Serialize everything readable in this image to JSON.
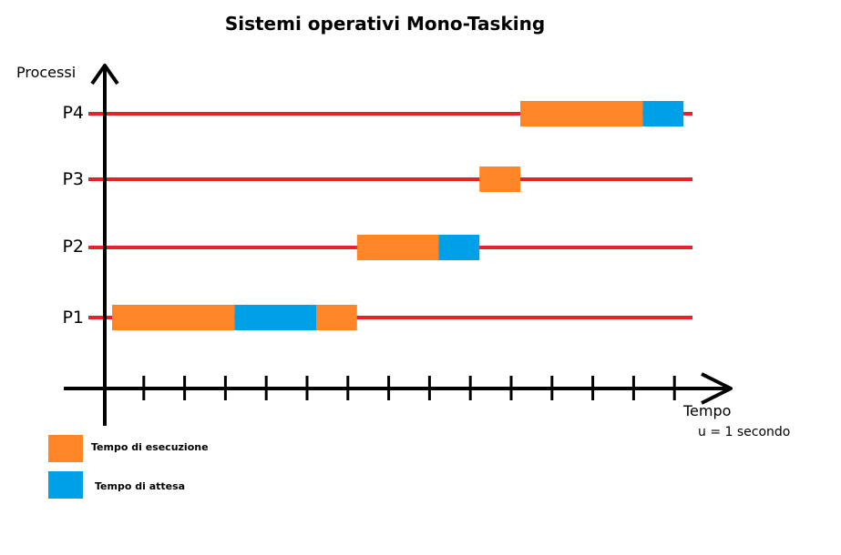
{
  "title": "Sistemi operativi Mono-Tasking",
  "y_axis_label": "Processi",
  "x_axis_label": "Tempo",
  "unit_note": "u = 1 secondo",
  "colors": {
    "timeline": "#e8202a",
    "execution": "#ff8526",
    "waiting": "#00a0e8",
    "axis": "#000000"
  },
  "legend": [
    {
      "label": "Tempo di esecuzione",
      "kind": "execution"
    },
    {
      "label": "Tempo di attesa",
      "kind": "waiting"
    }
  ],
  "processes": [
    {
      "label": "P4",
      "segments": [
        {
          "kind": "execution",
          "start": 10,
          "end": 13
        },
        {
          "kind": "waiting",
          "start": 13,
          "end": 14
        }
      ]
    },
    {
      "label": "P3",
      "segments": [
        {
          "kind": "execution",
          "start": 9,
          "end": 10
        }
      ]
    },
    {
      "label": "P2",
      "segments": [
        {
          "kind": "execution",
          "start": 6,
          "end": 8
        },
        {
          "kind": "waiting",
          "start": 8,
          "end": 9
        }
      ]
    },
    {
      "label": "P1",
      "segments": [
        {
          "kind": "execution",
          "start": 0,
          "end": 3
        },
        {
          "kind": "waiting",
          "start": 3,
          "end": 5
        },
        {
          "kind": "execution",
          "start": 5,
          "end": 6
        }
      ]
    }
  ],
  "tick_count": 14
}
